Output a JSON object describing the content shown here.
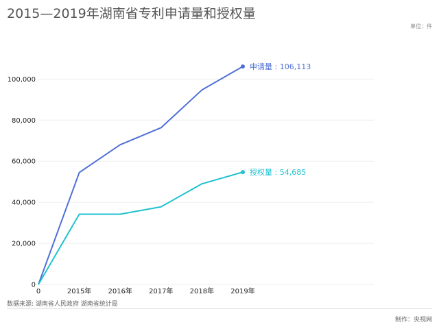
{
  "header": {
    "title": "2015—2019年湖南省专利申请量和授权量",
    "unit_label": "单位：件"
  },
  "footer": {
    "source": "数据来源: 湖南省人民政府 湖南省统计局",
    "credit": "制作：央视网"
  },
  "colors": {
    "application": "#4f6fd6",
    "grant": "#1fc1cf",
    "grid": "#eeeeee"
  },
  "chart_data": {
    "type": "line",
    "x": [
      "0",
      "2015年",
      "2016年",
      "2017年",
      "2018年",
      "2019年"
    ],
    "series": [
      {
        "values": [
          0,
          54500,
          68000,
          76300,
          94700,
          106113
        ],
        "end_label": "申请量 : 106,113"
      },
      {
        "values": [
          0,
          34200,
          34200,
          37800,
          49000,
          54685
        ],
        "end_label": "授权量 : 54,685"
      }
    ],
    "y_ticks": [
      0,
      20000,
      40000,
      60000,
      80000,
      100000
    ],
    "y_tick_labels": [
      "0",
      "20,000",
      "40,000",
      "60,000",
      "80,000",
      "100,000"
    ],
    "ylim": [
      0,
      106113
    ],
    "grid": true
  }
}
